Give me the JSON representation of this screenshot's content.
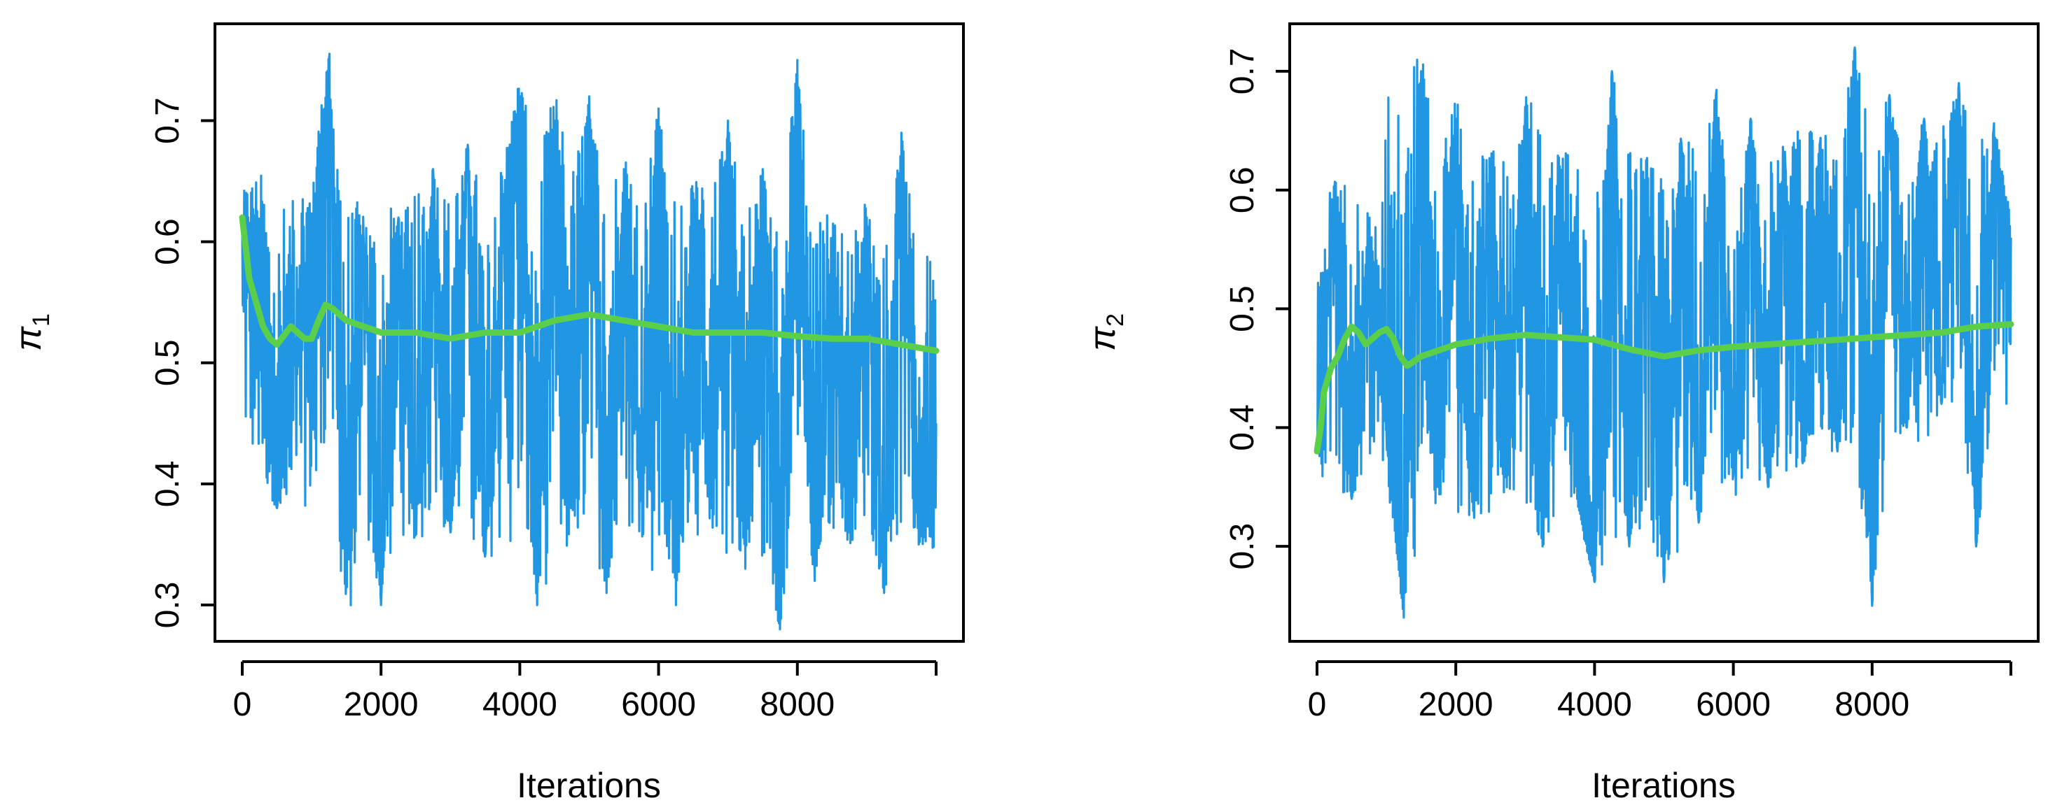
{
  "colors": {
    "trace": "#2196e3",
    "running_mean": "#5ccf4a",
    "axes": "#000000",
    "background": "#ffffff"
  },
  "chart_data": [
    {
      "type": "line",
      "xlabel": "Iterations",
      "ylabel": {
        "symbol": "π",
        "subscript": "1"
      },
      "xlim": [
        0,
        10000
      ],
      "ylim": [
        0.27,
        0.78
      ],
      "xticks": [
        0,
        2000,
        4000,
        6000,
        8000
      ],
      "xtick_labels": [
        "0",
        "2000",
        "4000",
        "6000",
        "8000"
      ],
      "yticks": [
        0.3,
        0.4,
        0.5,
        0.6,
        0.7
      ],
      "ytick_labels": [
        "0.3",
        "0.4",
        "0.5",
        "0.6",
        "0.7"
      ],
      "grid": false,
      "series": [
        {
          "kind": "trace",
          "x": [
            0,
            250,
            500,
            750,
            1000,
            1250,
            1500,
            1750,
            2000,
            2250,
            2500,
            2750,
            3000,
            3250,
            3500,
            3750,
            4000,
            4250,
            4500,
            4750,
            5000,
            5250,
            5500,
            5750,
            6000,
            6250,
            6500,
            6750,
            7000,
            7250,
            7500,
            7750,
            8000,
            8250,
            8500,
            8750,
            9000,
            9250,
            9500,
            9750,
            10000
          ],
          "y": [
            0.61,
            0.6,
            0.38,
            0.5,
            0.58,
            0.75,
            0.33,
            0.6,
            0.3,
            0.62,
            0.36,
            0.66,
            0.36,
            0.68,
            0.34,
            0.62,
            0.72,
            0.3,
            0.7,
            0.38,
            0.72,
            0.31,
            0.66,
            0.4,
            0.71,
            0.3,
            0.64,
            0.38,
            0.7,
            0.33,
            0.66,
            0.28,
            0.75,
            0.32,
            0.6,
            0.36,
            0.62,
            0.31,
            0.69,
            0.35,
            0.45
          ],
          "y_max": [
            0.64,
            0.66,
            0.62,
            0.66,
            0.66,
            0.76,
            0.64,
            0.63,
            0.64,
            0.62,
            0.64,
            0.66,
            0.65,
            0.68,
            0.64,
            0.66,
            0.74,
            0.66,
            0.73,
            0.67,
            0.72,
            0.66,
            0.68,
            0.64,
            0.71,
            0.64,
            0.66,
            0.64,
            0.7,
            0.64,
            0.66,
            0.62,
            0.75,
            0.62,
            0.63,
            0.61,
            0.64,
            0.6,
            0.69,
            0.58,
            0.6
          ],
          "y_min": [
            0.43,
            0.4,
            0.38,
            0.4,
            0.37,
            0.42,
            0.28,
            0.34,
            0.31,
            0.36,
            0.35,
            0.36,
            0.36,
            0.36,
            0.34,
            0.34,
            0.35,
            0.3,
            0.33,
            0.34,
            0.36,
            0.31,
            0.36,
            0.36,
            0.3,
            0.32,
            0.36,
            0.34,
            0.33,
            0.35,
            0.34,
            0.28,
            0.38,
            0.32,
            0.36,
            0.35,
            0.37,
            0.31,
            0.36,
            0.35,
            0.34
          ]
        },
        {
          "kind": "running_mean",
          "x": [
            0,
            100,
            200,
            300,
            400,
            500,
            700,
            900,
            1000,
            1100,
            1200,
            1300,
            1500,
            2000,
            2500,
            3000,
            3500,
            4000,
            4500,
            5000,
            5500,
            6000,
            6500,
            7000,
            7500,
            8000,
            8500,
            9000,
            9500,
            10000
          ],
          "y": [
            0.62,
            0.57,
            0.55,
            0.53,
            0.52,
            0.515,
            0.53,
            0.52,
            0.52,
            0.535,
            0.548,
            0.545,
            0.535,
            0.525,
            0.525,
            0.52,
            0.525,
            0.525,
            0.535,
            0.54,
            0.535,
            0.53,
            0.525,
            0.525,
            0.525,
            0.522,
            0.52,
            0.52,
            0.515,
            0.51
          ]
        }
      ]
    },
    {
      "type": "line",
      "xlabel": "Iterations",
      "ylabel": {
        "symbol": "π",
        "subscript": "2"
      },
      "xlim": [
        0,
        10000
      ],
      "ylim": [
        0.22,
        0.74
      ],
      "xticks": [
        0,
        2000,
        4000,
        6000,
        8000
      ],
      "xtick_labels": [
        "0",
        "2000",
        "4000",
        "6000",
        "8000"
      ],
      "yticks": [
        0.3,
        0.4,
        0.5,
        0.6,
        0.7
      ],
      "ytick_labels": [
        "0.3",
        "0.4",
        "0.5",
        "0.6",
        "0.7"
      ],
      "grid": false,
      "series": [
        {
          "kind": "trace",
          "x": [
            0,
            250,
            500,
            750,
            1000,
            1250,
            1500,
            1750,
            2000,
            2250,
            2500,
            2750,
            3000,
            3250,
            3500,
            3750,
            4000,
            4250,
            4500,
            4750,
            5000,
            5250,
            5500,
            5750,
            6000,
            6250,
            6500,
            6750,
            7000,
            7250,
            7500,
            7750,
            8000,
            8250,
            8500,
            8750,
            9000,
            9250,
            9500,
            9750,
            10000
          ],
          "y": [
            0.38,
            0.6,
            0.34,
            0.55,
            0.4,
            0.24,
            0.7,
            0.35,
            0.66,
            0.33,
            0.62,
            0.36,
            0.67,
            0.3,
            0.62,
            0.34,
            0.27,
            0.7,
            0.3,
            0.62,
            0.27,
            0.64,
            0.32,
            0.68,
            0.36,
            0.66,
            0.35,
            0.62,
            0.37,
            0.64,
            0.38,
            0.72,
            0.25,
            0.68,
            0.4,
            0.66,
            0.42,
            0.69,
            0.3,
            0.65,
            0.56
          ],
          "y_max": [
            0.55,
            0.62,
            0.6,
            0.58,
            0.68,
            0.7,
            0.72,
            0.62,
            0.68,
            0.62,
            0.64,
            0.62,
            0.68,
            0.66,
            0.64,
            0.62,
            0.6,
            0.7,
            0.64,
            0.63,
            0.62,
            0.66,
            0.64,
            0.69,
            0.63,
            0.66,
            0.62,
            0.64,
            0.66,
            0.65,
            0.64,
            0.72,
            0.65,
            0.68,
            0.64,
            0.66,
            0.65,
            0.69,
            0.66,
            0.66,
            0.58
          ],
          "y_min": [
            0.36,
            0.34,
            0.34,
            0.36,
            0.36,
            0.24,
            0.31,
            0.34,
            0.33,
            0.32,
            0.33,
            0.35,
            0.33,
            0.3,
            0.32,
            0.33,
            0.27,
            0.3,
            0.3,
            0.32,
            0.27,
            0.3,
            0.32,
            0.36,
            0.34,
            0.34,
            0.35,
            0.36,
            0.37,
            0.38,
            0.38,
            0.38,
            0.25,
            0.38,
            0.4,
            0.38,
            0.42,
            0.41,
            0.3,
            0.42,
            0.4
          ]
        },
        {
          "kind": "running_mean",
          "x": [
            0,
            50,
            100,
            200,
            300,
            400,
            500,
            600,
            700,
            800,
            900,
            1000,
            1100,
            1200,
            1300,
            1500,
            2000,
            2500,
            3000,
            3500,
            4000,
            4500,
            5000,
            5500,
            6000,
            6500,
            7000,
            7500,
            8000,
            8500,
            9000,
            9500,
            10000
          ],
          "y": [
            0.38,
            0.4,
            0.43,
            0.45,
            0.46,
            0.475,
            0.485,
            0.48,
            0.47,
            0.475,
            0.48,
            0.483,
            0.475,
            0.46,
            0.452,
            0.46,
            0.47,
            0.475,
            0.478,
            0.476,
            0.474,
            0.466,
            0.46,
            0.465,
            0.468,
            0.47,
            0.472,
            0.474,
            0.476,
            0.478,
            0.48,
            0.485,
            0.487
          ]
        }
      ]
    }
  ]
}
